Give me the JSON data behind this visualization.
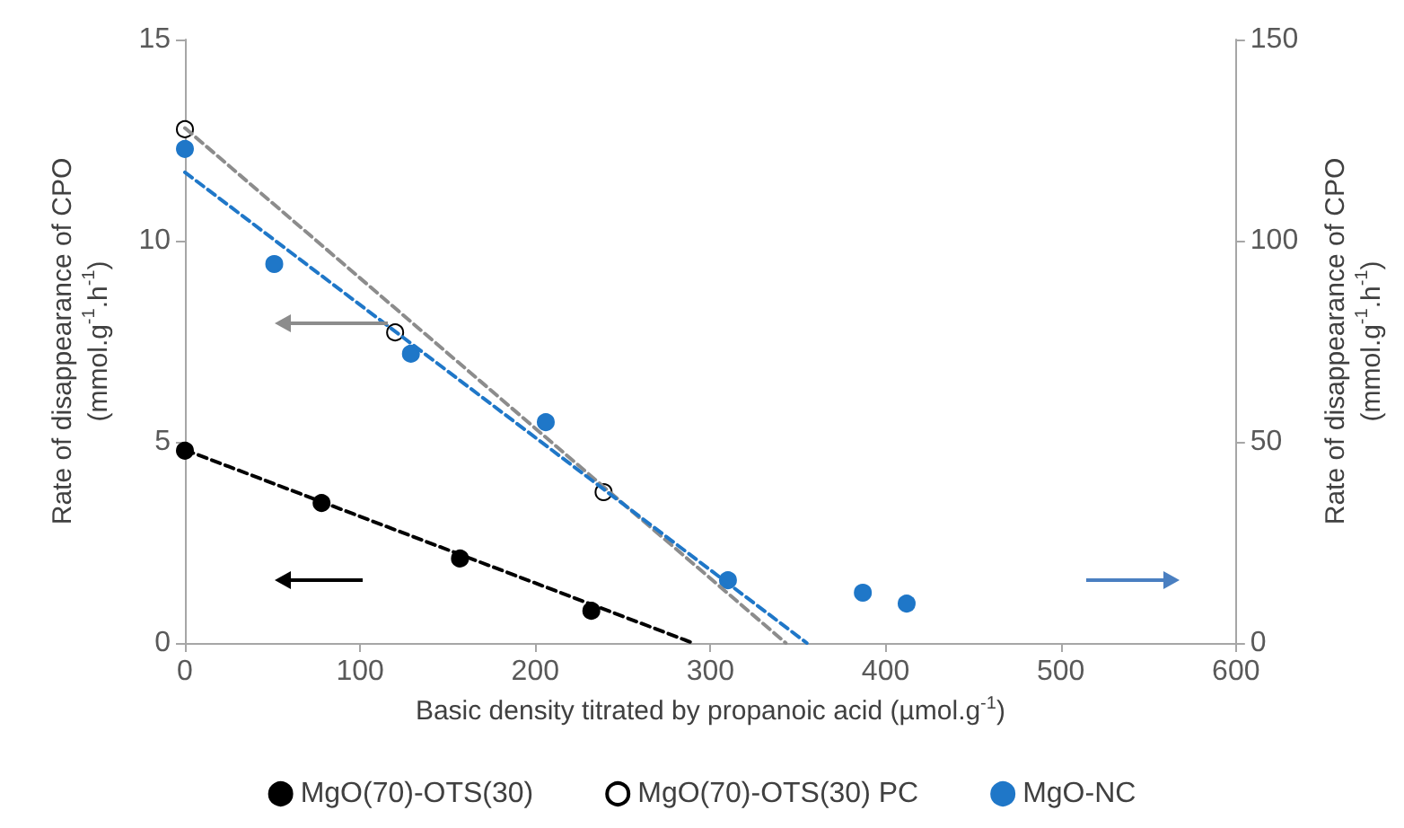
{
  "chart_data": {
    "type": "scatter",
    "xlabel": "Basic density titrated by propanoic acid (µmol.g$^{-1}$)",
    "ylabel": "Rate of disappearance of CPO\n(mmol.g$^{-1}$.h$^{-1}$)",
    "y2label": "Rate of disappearance of CPO\n(mmol.g$^{-1}$.h$^{-1}$)",
    "xlim": [
      0,
      600
    ],
    "xticks": [
      0,
      100,
      200,
      300,
      400,
      500,
      600
    ],
    "ylim": [
      0,
      15
    ],
    "yticks": [
      0,
      5,
      10,
      15
    ],
    "y2lim": [
      0,
      150
    ],
    "y2ticks": [
      0,
      50,
      100,
      150
    ],
    "grid": false,
    "legend": "bottom",
    "marker": "circle",
    "series": [
      {
        "name": "MgO(70)-OTS(30)",
        "color": "#000000",
        "x": [
          0,
          78,
          157,
          232
        ],
        "values": [
          4.78,
          3.48,
          2.1,
          0.8
        ]
      },
      {
        "name": "MgO(70)-OTS(30) PC",
        "color": "#ffffff",
        "x": [
          0,
          120,
          239
        ],
        "values": [
          12.77,
          7.72,
          3.75
        ]
      },
      {
        "name": "MgO-NC",
        "color": "#1f77c8",
        "axis": "y2",
        "x": [
          0,
          51,
          129,
          206,
          310,
          387,
          412
        ],
        "values": [
          122.8,
          94.2,
          71.9,
          54.9,
          15.6,
          12.5,
          9.8
        ]
      },
      {
        "type": "line",
        "color": "#000000",
        "marker": "none",
        "line_style": "dashed",
        "x": [
          0,
          290
        ],
        "values": [
          4.8,
          0
        ]
      },
      {
        "type": "line",
        "color": "#8c8c8c",
        "marker": "none",
        "line_style": "dashed",
        "x": [
          0,
          343
        ],
        "values": [
          12.8,
          0
        ]
      },
      {
        "type": "line",
        "color": "#1f77c8",
        "marker": "none",
        "line_style": "dashed",
        "axis": "y2",
        "x": [
          0,
          355
        ],
        "values": [
          117,
          0
        ]
      }
    ]
  }
}
